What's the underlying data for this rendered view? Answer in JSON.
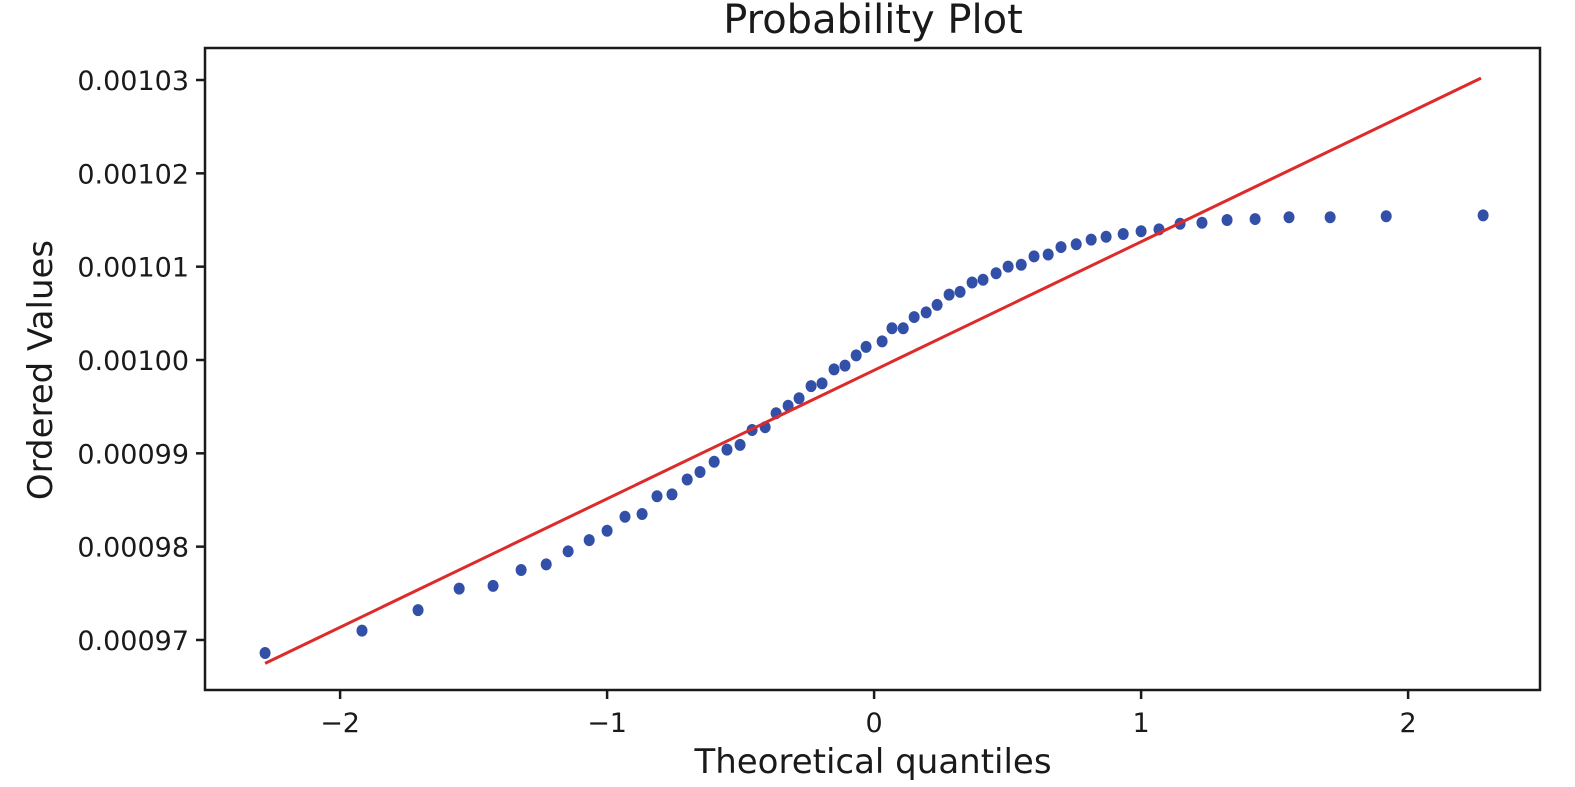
{
  "chart_data": {
    "type": "scatter",
    "title": "Probability Plot",
    "xlabel": "Theoretical quantiles",
    "ylabel": "Ordered Values",
    "xlim": [
      -2.506,
      2.494
    ],
    "ylim": [
      0.00096464,
      0.00103343
    ],
    "xticks": [
      -2,
      -1,
      0,
      1,
      2
    ],
    "xtick_labels": [
      "−2",
      "−1",
      "0",
      "1",
      "2"
    ],
    "yticks": [
      0.00097,
      0.00098,
      0.00099,
      0.001,
      0.00101,
      0.00102,
      0.00103
    ],
    "ytick_labels": [
      "0.00097",
      "0.00098",
      "0.00099",
      "0.00100",
      "0.00101",
      "0.00102",
      "0.00103"
    ],
    "grid": false,
    "colors": {
      "points": "#3350a8",
      "fit_line": "#dd2a2a",
      "axes": "#1a1a1a"
    },
    "x": [
      -2.281,
      -1.918,
      -1.708,
      -1.554,
      -1.427,
      -1.322,
      -1.228,
      -1.146,
      -1.067,
      -1.0,
      -0.933,
      -0.869,
      -0.813,
      -0.757,
      -0.7,
      -0.652,
      -0.599,
      -0.551,
      -0.502,
      -0.457,
      -0.408,
      -0.367,
      -0.322,
      -0.281,
      -0.236,
      -0.195,
      -0.15,
      -0.109,
      -0.067,
      -0.03,
      0.03,
      0.067,
      0.109,
      0.15,
      0.195,
      0.236,
      0.281,
      0.322,
      0.367,
      0.408,
      0.457,
      0.502,
      0.551,
      0.599,
      0.652,
      0.7,
      0.757,
      0.813,
      0.869,
      0.933,
      1.0,
      1.067,
      1.146,
      1.228,
      1.322,
      1.427,
      1.554,
      1.708,
      1.918,
      2.281
    ],
    "y": [
      0.0009686,
      0.000971,
      0.0009732,
      0.0009755,
      0.0009758,
      0.0009775,
      0.0009781,
      0.0009795,
      0.0009807,
      0.0009817,
      0.0009832,
      0.0009835,
      0.0009854,
      0.0009856,
      0.0009872,
      0.000988,
      0.0009891,
      0.0009904,
      0.0009909,
      0.0009925,
      0.0009928,
      0.0009943,
      0.0009951,
      0.0009959,
      0.0009972,
      0.0009975,
      0.000999,
      0.0009994,
      0.0010005,
      0.0010014,
      0.001002,
      0.0010034,
      0.0010034,
      0.0010046,
      0.0010051,
      0.0010059,
      0.001007,
      0.0010073,
      0.0010083,
      0.0010086,
      0.0010093,
      0.00101,
      0.0010102,
      0.0010111,
      0.0010113,
      0.0010121,
      0.0010124,
      0.0010129,
      0.0010132,
      0.0010135,
      0.0010138,
      0.001014,
      0.0010146,
      0.0010147,
      0.001015,
      0.0010151,
      0.0010153,
      0.0010153,
      0.0010154,
      0.0010155
    ],
    "fit_line": {
      "slope": 1.377e-05,
      "intercept": 0.0009989,
      "x_range": [
        -2.281,
        2.273
      ]
    }
  }
}
